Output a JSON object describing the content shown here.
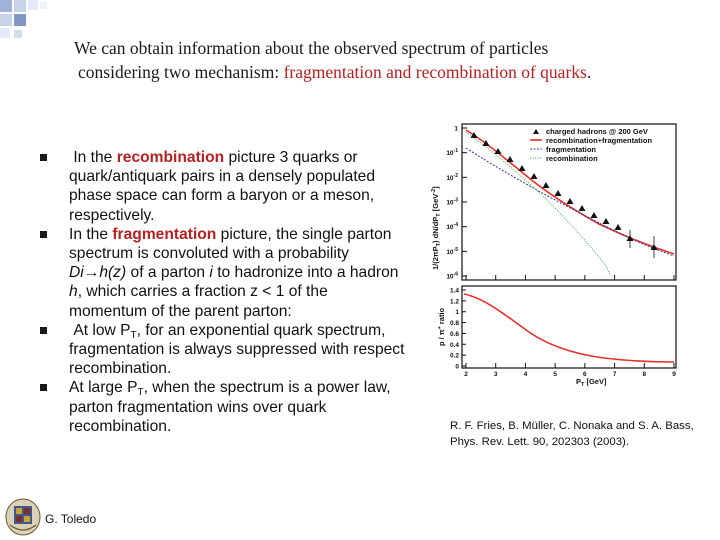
{
  "title": {
    "line1": "We can obtain information about the observed spectrum of particles",
    "line2_prefix": "considering two mechanism:",
    "line2_highlight": "fragmentation and recombination of quarks",
    "line2_suffix": "."
  },
  "bullets": [
    {
      "prefix": "In the ",
      "highlight": "recombination",
      "text": " picture 3 quarks or quark/antiquark pairs in a densely populated phase space can form a baryon or a meson, respectively."
    },
    {
      "prefix": "In the ",
      "highlight": "fragmentation",
      "text_a": " picture, the single parton spectrum is convoluted with a probability ",
      "italic": "Di→h(z)",
      "text_b": " of a parton ",
      "italic2": "i",
      "text_c": " to hadronize into a hadron ",
      "italic3": "h",
      "text_d": ", which carries a fraction z < 1 of the momentum of the parent parton:"
    },
    {
      "text_a": "At low P",
      "sub": "T",
      "text_b": ", for an exponential quark spectrum, fragmentation is always suppressed with respect recombination."
    },
    {
      "text_a": "At large P",
      "sub": "T",
      "text_b": ", when the spectrum is a power law, parton fragmentation wins over quark recombination."
    }
  ],
  "figure": {
    "legend": {
      "data": "charged hadrons @ 200 GeV",
      "total": "recombination+fragmentation",
      "frag": "fragmentation",
      "reco": "recombination"
    },
    "top_ylabel": "1/(2πP",
    "top_ylabel_sub": "T",
    "top_ylabel_tail": ") dN/dP",
    "top_ylabel_sub2": "T",
    "top_ylabel_unit": " [GeV",
    "top_ylabel_exp": "-2",
    "top_ylabel_end": "]",
    "top_yticks": [
      "1",
      "10",
      "10",
      "10",
      "10",
      "10",
      "10"
    ],
    "top_ytick_exps": [
      "",
      "-1",
      "-2",
      "-3",
      "-4",
      "-5",
      "-6"
    ],
    "bottom_ylabel": "p / π",
    "bottom_ylabel_sup": "+",
    "bottom_ylabel_tail": " ratio",
    "bottom_yticks": [
      "1.4",
      "1.2",
      "1",
      "0.8",
      "0.6",
      "0.4",
      "0.2",
      "0"
    ],
    "xticks": [
      "2",
      "3",
      "4",
      "5",
      "6",
      "7",
      "8",
      "9"
    ],
    "xlabel": "P",
    "xlabel_sub": "T",
    "xlabel_unit": " [GeV]",
    "colors": {
      "total": "#e8302a",
      "frag": "#2b3a8f",
      "reco": "#3aa84a",
      "data": "#111111"
    }
  },
  "citation": {
    "line1": "R. F. Fries, B. Müller, C. Nonaka and S. A. Bass,",
    "line2": "Phys. Rev. Lett. 90, 202303 (2003)."
  },
  "footer": {
    "author": "G. Toledo",
    "logo_icon": "university-crest-icon"
  }
}
